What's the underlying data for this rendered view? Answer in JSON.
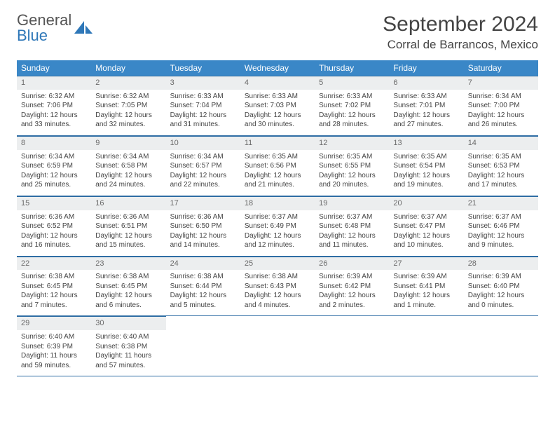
{
  "brand": {
    "name1": "General",
    "name2": "Blue"
  },
  "title": "September 2024",
  "location": "Corral de Barrancos, Mexico",
  "colors": {
    "header_bg": "#3a87c7",
    "header_text": "#ffffff",
    "daynum_bg": "#eceeef",
    "border": "#2e6da4",
    "brand_blue": "#2e77b8",
    "text": "#444444"
  },
  "weekdays": [
    "Sunday",
    "Monday",
    "Tuesday",
    "Wednesday",
    "Thursday",
    "Friday",
    "Saturday"
  ],
  "days": [
    {
      "n": "1",
      "sunrise": "Sunrise: 6:32 AM",
      "sunset": "Sunset: 7:06 PM",
      "day": "Daylight: 12 hours and 33 minutes."
    },
    {
      "n": "2",
      "sunrise": "Sunrise: 6:32 AM",
      "sunset": "Sunset: 7:05 PM",
      "day": "Daylight: 12 hours and 32 minutes."
    },
    {
      "n": "3",
      "sunrise": "Sunrise: 6:33 AM",
      "sunset": "Sunset: 7:04 PM",
      "day": "Daylight: 12 hours and 31 minutes."
    },
    {
      "n": "4",
      "sunrise": "Sunrise: 6:33 AM",
      "sunset": "Sunset: 7:03 PM",
      "day": "Daylight: 12 hours and 30 minutes."
    },
    {
      "n": "5",
      "sunrise": "Sunrise: 6:33 AM",
      "sunset": "Sunset: 7:02 PM",
      "day": "Daylight: 12 hours and 28 minutes."
    },
    {
      "n": "6",
      "sunrise": "Sunrise: 6:33 AM",
      "sunset": "Sunset: 7:01 PM",
      "day": "Daylight: 12 hours and 27 minutes."
    },
    {
      "n": "7",
      "sunrise": "Sunrise: 6:34 AM",
      "sunset": "Sunset: 7:00 PM",
      "day": "Daylight: 12 hours and 26 minutes."
    },
    {
      "n": "8",
      "sunrise": "Sunrise: 6:34 AM",
      "sunset": "Sunset: 6:59 PM",
      "day": "Daylight: 12 hours and 25 minutes."
    },
    {
      "n": "9",
      "sunrise": "Sunrise: 6:34 AM",
      "sunset": "Sunset: 6:58 PM",
      "day": "Daylight: 12 hours and 24 minutes."
    },
    {
      "n": "10",
      "sunrise": "Sunrise: 6:34 AM",
      "sunset": "Sunset: 6:57 PM",
      "day": "Daylight: 12 hours and 22 minutes."
    },
    {
      "n": "11",
      "sunrise": "Sunrise: 6:35 AM",
      "sunset": "Sunset: 6:56 PM",
      "day": "Daylight: 12 hours and 21 minutes."
    },
    {
      "n": "12",
      "sunrise": "Sunrise: 6:35 AM",
      "sunset": "Sunset: 6:55 PM",
      "day": "Daylight: 12 hours and 20 minutes."
    },
    {
      "n": "13",
      "sunrise": "Sunrise: 6:35 AM",
      "sunset": "Sunset: 6:54 PM",
      "day": "Daylight: 12 hours and 19 minutes."
    },
    {
      "n": "14",
      "sunrise": "Sunrise: 6:35 AM",
      "sunset": "Sunset: 6:53 PM",
      "day": "Daylight: 12 hours and 17 minutes."
    },
    {
      "n": "15",
      "sunrise": "Sunrise: 6:36 AM",
      "sunset": "Sunset: 6:52 PM",
      "day": "Daylight: 12 hours and 16 minutes."
    },
    {
      "n": "16",
      "sunrise": "Sunrise: 6:36 AM",
      "sunset": "Sunset: 6:51 PM",
      "day": "Daylight: 12 hours and 15 minutes."
    },
    {
      "n": "17",
      "sunrise": "Sunrise: 6:36 AM",
      "sunset": "Sunset: 6:50 PM",
      "day": "Daylight: 12 hours and 14 minutes."
    },
    {
      "n": "18",
      "sunrise": "Sunrise: 6:37 AM",
      "sunset": "Sunset: 6:49 PM",
      "day": "Daylight: 12 hours and 12 minutes."
    },
    {
      "n": "19",
      "sunrise": "Sunrise: 6:37 AM",
      "sunset": "Sunset: 6:48 PM",
      "day": "Daylight: 12 hours and 11 minutes."
    },
    {
      "n": "20",
      "sunrise": "Sunrise: 6:37 AM",
      "sunset": "Sunset: 6:47 PM",
      "day": "Daylight: 12 hours and 10 minutes."
    },
    {
      "n": "21",
      "sunrise": "Sunrise: 6:37 AM",
      "sunset": "Sunset: 6:46 PM",
      "day": "Daylight: 12 hours and 9 minutes."
    },
    {
      "n": "22",
      "sunrise": "Sunrise: 6:38 AM",
      "sunset": "Sunset: 6:45 PM",
      "day": "Daylight: 12 hours and 7 minutes."
    },
    {
      "n": "23",
      "sunrise": "Sunrise: 6:38 AM",
      "sunset": "Sunset: 6:45 PM",
      "day": "Daylight: 12 hours and 6 minutes."
    },
    {
      "n": "24",
      "sunrise": "Sunrise: 6:38 AM",
      "sunset": "Sunset: 6:44 PM",
      "day": "Daylight: 12 hours and 5 minutes."
    },
    {
      "n": "25",
      "sunrise": "Sunrise: 6:38 AM",
      "sunset": "Sunset: 6:43 PM",
      "day": "Daylight: 12 hours and 4 minutes."
    },
    {
      "n": "26",
      "sunrise": "Sunrise: 6:39 AM",
      "sunset": "Sunset: 6:42 PM",
      "day": "Daylight: 12 hours and 2 minutes."
    },
    {
      "n": "27",
      "sunrise": "Sunrise: 6:39 AM",
      "sunset": "Sunset: 6:41 PM",
      "day": "Daylight: 12 hours and 1 minute."
    },
    {
      "n": "28",
      "sunrise": "Sunrise: 6:39 AM",
      "sunset": "Sunset: 6:40 PM",
      "day": "Daylight: 12 hours and 0 minutes."
    },
    {
      "n": "29",
      "sunrise": "Sunrise: 6:40 AM",
      "sunset": "Sunset: 6:39 PM",
      "day": "Daylight: 11 hours and 59 minutes."
    },
    {
      "n": "30",
      "sunrise": "Sunrise: 6:40 AM",
      "sunset": "Sunset: 6:38 PM",
      "day": "Daylight: 11 hours and 57 minutes."
    }
  ]
}
